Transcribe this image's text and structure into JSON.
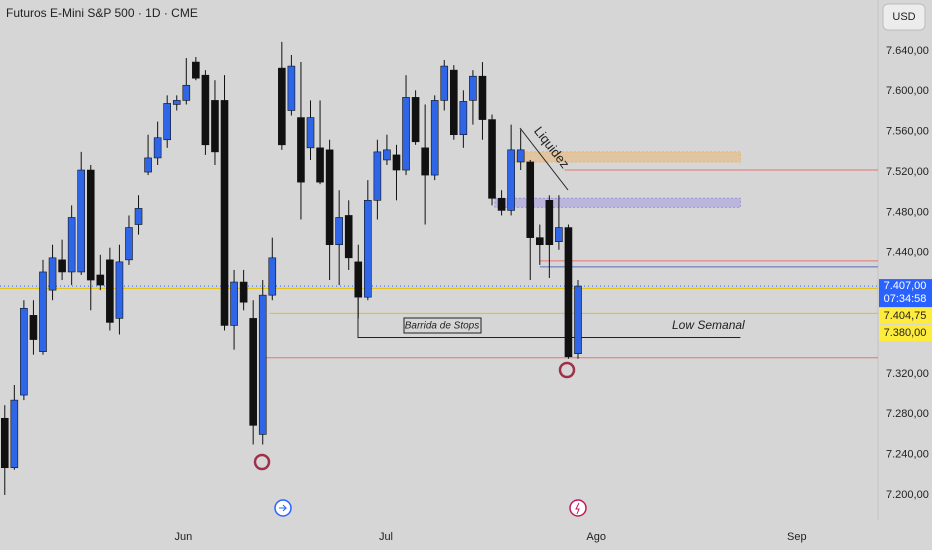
{
  "chart_data": {
    "type": "candlestick",
    "title": "Futuros E-Mini S&P 500 · 1D · CME",
    "currency": "USD",
    "open": [
      7276,
      7227,
      7299,
      7378,
      7342,
      7403,
      7433,
      7421,
      7421,
      7522,
      7418,
      7433,
      7375,
      7433,
      7468,
      7520,
      7534,
      7552,
      7587,
      7591,
      7629,
      7616,
      7591,
      7591,
      7368,
      7411,
      7375,
      7260,
      7398,
      7623,
      7581,
      7574,
      7544,
      7544,
      7542,
      7448,
      7477,
      7431,
      7396,
      7492,
      7532,
      7537,
      7522,
      7594,
      7544,
      7517,
      7591,
      7621,
      7557,
      7591,
      7615,
      7572,
      7494,
      7482,
      7530,
      7530,
      7455,
      7492,
      7451,
      7465,
      7340
    ],
    "high": [
      7289,
      7309,
      7393,
      7393,
      7433,
      7448,
      7453,
      7487,
      7540,
      7527,
      7438,
      7445,
      7448,
      7477,
      7497,
      7557,
      7570,
      7596,
      7596,
      7633,
      7634,
      7621,
      7611,
      7616,
      7423,
      7423,
      7393,
      7413,
      7455,
      7649,
      7636,
      7629,
      7591,
      7591,
      7552,
      7502,
      7492,
      7448,
      7512,
      7552,
      7557,
      7547,
      7616,
      7601,
      7587,
      7596,
      7631,
      7626,
      7601,
      7621,
      7629,
      7577,
      7502,
      7567,
      7562,
      7532,
      7468,
      7497,
      7497,
      7468,
      7413
    ],
    "low": [
      7200,
      7225,
      7294,
      7339,
      7339,
      7393,
      7413,
      7408,
      7418,
      7383,
      7403,
      7363,
      7359,
      7428,
      7458,
      7517,
      7527,
      7544,
      7581,
      7587,
      7611,
      7537,
      7527,
      7363,
      7344,
      7383,
      7250,
      7250,
      7393,
      7542,
      7576,
      7473,
      7532,
      7508,
      7413,
      7408,
      7423,
      7375,
      7393,
      7473,
      7527,
      7492,
      7517,
      7547,
      7468,
      7512,
      7581,
      7552,
      7544,
      7567,
      7552,
      7487,
      7477,
      7477,
      7522,
      7413,
      7428,
      7415,
      7443,
      7335,
      7335
    ],
    "close": [
      7227,
      7294,
      7385,
      7354,
      7421,
      7435,
      7421,
      7475,
      7522,
      7413,
      7408,
      7371,
      7431,
      7465,
      7484,
      7534,
      7554,
      7588,
      7591,
      7606,
      7613,
      7547,
      7540,
      7368,
      7411,
      7391,
      7269,
      7398,
      7435,
      7547,
      7625,
      7510,
      7574,
      7510,
      7448,
      7475,
      7435,
      7396,
      7492,
      7540,
      7542,
      7522,
      7594,
      7550,
      7517,
      7591,
      7625,
      7557,
      7590,
      7615,
      7572,
      7494,
      7482,
      7542,
      7542,
      7455,
      7448,
      7448,
      7465,
      7337,
      7407
    ],
    "up_color": "#2f66e8",
    "down_color": "#111111",
    "xlim": [
      -0.5,
      91.4
    ],
    "xticks": [
      {
        "value": 18.7,
        "label": "Jun"
      },
      {
        "value": 39.9,
        "label": "Jul"
      },
      {
        "value": 61.9,
        "label": "Ago"
      },
      {
        "value": 82.9,
        "label": "Sep"
      }
    ],
    "ylim": [
      7175.2,
      7690.5
    ],
    "yticks": [
      {
        "value": 7640,
        "label": "7.640,00"
      },
      {
        "value": 7600,
        "label": "7.600,00"
      },
      {
        "value": 7560,
        "label": "7.560,00"
      },
      {
        "value": 7520,
        "label": "7.520,00"
      },
      {
        "value": 7480,
        "label": "7.480,00"
      },
      {
        "value": 7440,
        "label": "7.440,00"
      },
      {
        "value": 7320,
        "label": "7.320,00"
      },
      {
        "value": 7280,
        "label": "7.280,00"
      },
      {
        "value": 7240,
        "label": "7.240,00"
      },
      {
        "value": 7200,
        "label": "7.200,00"
      }
    ],
    "last_price": {
      "value": 7407,
      "label": "7.407,00",
      "countdown": "07:34:58",
      "color": "#2962ff"
    },
    "price_labels": [
      {
        "value": 7404.75,
        "label": "7.404,75",
        "color": "#ffeb3b"
      },
      {
        "value": 7380,
        "label": "7.380,00",
        "color": "#ffeb3b"
      }
    ],
    "levels": [
      {
        "value": 7522,
        "color": "#e57373",
        "from": 58.6
      },
      {
        "value": 7432,
        "color": "#e57373",
        "from": 56
      },
      {
        "value": 7426,
        "color": "#5c6bc0",
        "from": 56
      },
      {
        "value": 7407,
        "color": "#2962ff",
        "from": -0.5,
        "dashed": true
      },
      {
        "value": 7404.75,
        "color": "#e6c200",
        "from": -0.5
      },
      {
        "value": 7380,
        "color": "#e6c200",
        "from": 27.7
      },
      {
        "value": 7356,
        "color": "#222222",
        "from": 37,
        "to": 77
      },
      {
        "value": 7336,
        "color": "#e57373",
        "from": 27.2
      }
    ],
    "zones": [
      {
        "low": 7530,
        "high": 7540,
        "color": "#f0b060",
        "from": 52.9,
        "to": 77
      },
      {
        "low": 7485,
        "high": 7494,
        "color": "#9a8fe0",
        "from": 51.3,
        "to": 77
      }
    ],
    "annotations": {
      "liquidity": "Liquidez",
      "stops": "Barrida de Stops",
      "weekly_low": "Low Semanal"
    }
  }
}
